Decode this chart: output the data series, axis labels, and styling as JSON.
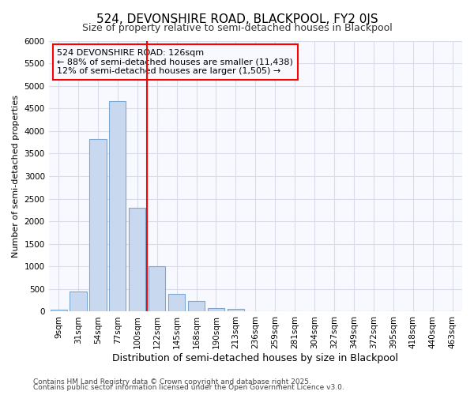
{
  "title": "524, DEVONSHIRE ROAD, BLACKPOOL, FY2 0JS",
  "subtitle": "Size of property relative to semi-detached houses in Blackpool",
  "xlabel": "Distribution of semi-detached houses by size in Blackpool",
  "ylabel": "Number of semi-detached properties",
  "categories": [
    "9sqm",
    "31sqm",
    "54sqm",
    "77sqm",
    "100sqm",
    "122sqm",
    "145sqm",
    "168sqm",
    "190sqm",
    "213sqm",
    "236sqm",
    "259sqm",
    "281sqm",
    "304sqm",
    "327sqm",
    "349sqm",
    "372sqm",
    "395sqm",
    "418sqm",
    "440sqm",
    "463sqm"
  ],
  "values": [
    40,
    450,
    3820,
    4670,
    2300,
    1000,
    400,
    230,
    80,
    60,
    15,
    5,
    2,
    0,
    0,
    0,
    0,
    0,
    0,
    0,
    0
  ],
  "bar_color": "#c8d9ef",
  "bar_edge_color": "#7ba7d0",
  "red_line_index": 5,
  "red_line_label": "524 DEVONSHIRE ROAD: 126sqm",
  "annotation_line1": "← 88% of semi-detached houses are smaller (11,438)",
  "annotation_line2": "12% of semi-detached houses are larger (1,505) →",
  "ylim": [
    0,
    6000
  ],
  "yticks": [
    0,
    500,
    1000,
    1500,
    2000,
    2500,
    3000,
    3500,
    4000,
    4500,
    5000,
    5500,
    6000
  ],
  "footnote1": "Contains HM Land Registry data © Crown copyright and database right 2025.",
  "footnote2": "Contains public sector information licensed under the Open Government Licence v3.0.",
  "bg_color": "#ffffff",
  "plot_bg_color": "#f7f9ff",
  "grid_color": "#d8dce8",
  "title_fontsize": 11,
  "subtitle_fontsize": 9,
  "xlabel_fontsize": 9,
  "ylabel_fontsize": 8,
  "tick_fontsize": 7.5,
  "footnote_fontsize": 6.5,
  "annotation_fontsize": 8
}
